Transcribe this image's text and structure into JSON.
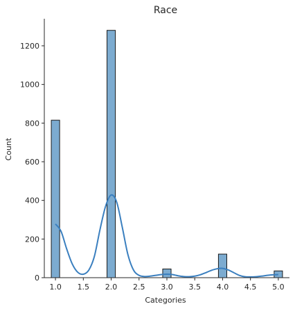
{
  "chart_data": {
    "type": "bar",
    "title": "Race",
    "xlabel": "Categories",
    "ylabel": "Count",
    "xlim": [
      0.8,
      5.2
    ],
    "ylim": [
      0,
      1340
    ],
    "bar_width": 0.15,
    "bars": [
      {
        "x": 1.0,
        "value": 815
      },
      {
        "x": 2.0,
        "value": 1280
      },
      {
        "x": 3.0,
        "value": 45
      },
      {
        "x": 4.0,
        "value": 122
      },
      {
        "x": 5.0,
        "value": 35
      }
    ],
    "xticks": [
      1.0,
      1.5,
      2.0,
      2.5,
      3.0,
      3.5,
      4.0,
      4.5,
      5.0
    ],
    "xtick_labels": [
      "1.0",
      "1.5",
      "2.0",
      "2.5",
      "3.0",
      "3.5",
      "4.0",
      "4.5",
      "5.0"
    ],
    "yticks": [
      0,
      200,
      400,
      600,
      800,
      1000,
      1200
    ],
    "ytick_labels": [
      "0",
      "200",
      "400",
      "600",
      "800",
      "1000",
      "1200"
    ],
    "kde": {
      "x": [
        1.0,
        1.1,
        1.2,
        1.3,
        1.4,
        1.5,
        1.6,
        1.7,
        1.8,
        1.9,
        2.0,
        2.1,
        2.2,
        2.3,
        2.4,
        2.5,
        2.6,
        2.7,
        2.8,
        2.9,
        3.0,
        3.1,
        3.2,
        3.3,
        3.4,
        3.5,
        3.6,
        3.7,
        3.8,
        3.9,
        4.0,
        4.1,
        4.2,
        4.3,
        4.4,
        4.5,
        4.6,
        4.7,
        4.8,
        4.9,
        5.0
      ],
      "y": [
        278,
        240,
        150,
        72,
        28,
        18,
        40,
        112,
        250,
        370,
        428,
        390,
        260,
        120,
        40,
        12,
        6,
        8,
        12,
        16,
        18,
        16,
        10,
        6,
        5,
        8,
        15,
        26,
        38,
        46,
        48,
        40,
        26,
        12,
        5,
        4,
        5,
        8,
        12,
        15,
        16
      ]
    },
    "grid": false,
    "legend": "none",
    "colors": {
      "bar_fill": "#7cabd0",
      "bar_edge": "#1a1a1a",
      "kde_line": "#3a7fbf",
      "axis": "#262626"
    }
  }
}
